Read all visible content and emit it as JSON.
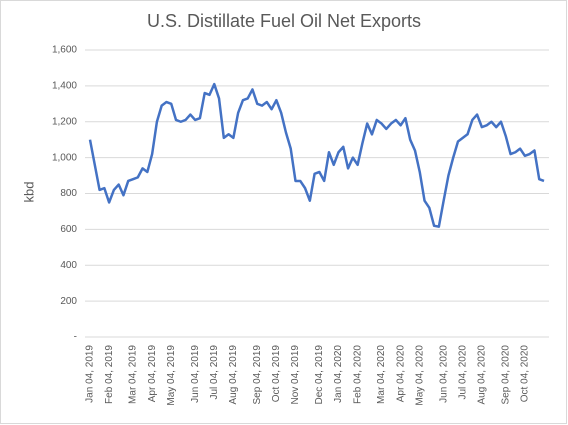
{
  "chart_data": {
    "type": "line",
    "title": "U.S. Distillate Fuel Oil Net Exports",
    "y_label": "kbd",
    "categories": [
      "Jan 04, 2019",
      null,
      null,
      null,
      "Feb 04, 2019",
      null,
      null,
      null,
      null,
      "Mar 04, 2019",
      null,
      null,
      null,
      "Apr 04, 2019",
      null,
      null,
      null,
      "May 04, 2019",
      null,
      null,
      null,
      null,
      "Jun 04, 2019",
      null,
      null,
      null,
      "Jul 04, 2019",
      null,
      null,
      null,
      "Aug 04, 2019",
      null,
      null,
      null,
      null,
      "Sep 04, 2019",
      null,
      null,
      null,
      "Oct 04, 2019",
      null,
      null,
      null,
      "Nov 04, 2019",
      null,
      null,
      null,
      null,
      "Dec 04, 2019",
      null,
      null,
      null,
      "Jan 04, 2020",
      null,
      null,
      null,
      "Feb 04, 2020",
      null,
      null,
      null,
      null,
      "Mar 04, 2020",
      null,
      null,
      null,
      "Apr 04, 2020",
      null,
      null,
      null,
      "May 04, 2020",
      null,
      null,
      null,
      null,
      "Jun 04, 2020",
      null,
      null,
      null,
      "Jul 04, 2020",
      null,
      null,
      null,
      "Aug 04, 2020",
      null,
      null,
      null,
      null,
      "Sep 04, 2020",
      null,
      null,
      null,
      "Oct 04, 2020",
      null,
      null,
      null,
      null
    ],
    "values": [
      1100,
      960,
      820,
      830,
      750,
      820,
      850,
      790,
      870,
      880,
      890,
      940,
      920,
      1020,
      1200,
      1290,
      1310,
      1300,
      1210,
      1200,
      1210,
      1240,
      1210,
      1220,
      1360,
      1350,
      1410,
      1330,
      1110,
      1130,
      1110,
      1250,
      1320,
      1330,
      1380,
      1300,
      1290,
      1310,
      1270,
      1320,
      1250,
      1140,
      1050,
      870,
      870,
      830,
      760,
      910,
      920,
      870,
      1030,
      960,
      1030,
      1060,
      940,
      1000,
      960,
      1080,
      1190,
      1130,
      1210,
      1190,
      1160,
      1190,
      1210,
      1180,
      1220,
      1100,
      1040,
      920,
      760,
      720,
      620,
      615,
      760,
      900,
      1000,
      1090,
      1110,
      1130,
      1210,
      1240,
      1170,
      1180,
      1200,
      1170,
      1200,
      1120,
      1020,
      1030,
      1050,
      1010,
      1020,
      1040,
      880,
      870
    ],
    "color": "#4472c4",
    "ylim": [
      0,
      1600
    ],
    "yticks": [
      {
        "value": 0,
        "label": "-"
      },
      200,
      400,
      600,
      800,
      {
        "value": 1000,
        "label": "1,000"
      },
      {
        "value": 1200,
        "label": "1,200"
      },
      {
        "value": 1400,
        "label": "1,400"
      },
      {
        "value": 1600,
        "label": "1,600"
      }
    ],
    "grid": true
  }
}
